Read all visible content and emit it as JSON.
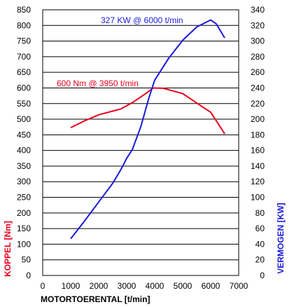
{
  "chart_data": {
    "type": "line",
    "xlabel": "MOTORTOERENTAL  [t/min]",
    "x_ticks": [
      "0",
      "1000",
      "2000",
      "3000",
      "4000",
      "5000",
      "6000",
      "7000"
    ],
    "xlim": [
      0,
      7000
    ],
    "ylabel_left": "KOPPEL  [Nm]",
    "ylabel_left_color": "#e8001c",
    "ylim_left": [
      0,
      850
    ],
    "yticks_left": [
      "0",
      "50",
      "100",
      "150",
      "200",
      "250",
      "300",
      "350",
      "400",
      "450",
      "500",
      "550",
      "600",
      "650",
      "700",
      "750",
      "800",
      "850"
    ],
    "ylabel_right": "VERMOGEN  [KW]",
    "ylabel_right_color": "#1a1adb",
    "ylim_right": [
      0,
      340
    ],
    "yticks_right": [
      "0",
      "20",
      "40",
      "60",
      "80",
      "100",
      "120",
      "140",
      "160",
      "180",
      "200",
      "220",
      "240",
      "260",
      "280",
      "300",
      "320",
      "340"
    ],
    "grid": "horizontal",
    "series": [
      {
        "axis": "left",
        "color": "#e8001c",
        "annotation": "600 Nm @ 3950 t/min",
        "x": [
          1000,
          1500,
          2000,
          2500,
          2800,
          3200,
          3600,
          3950,
          4300,
          5000,
          5500,
          6000,
          6250,
          6500
        ],
        "values": [
          473,
          495,
          514,
          526,
          533,
          553,
          577,
          600,
          599,
          582,
          552,
          522,
          488,
          453
        ]
      },
      {
        "axis": "right",
        "color": "#1a1adb",
        "annotation": "327 KW @ 6000 t/min",
        "x": [
          1000,
          1500,
          2000,
          2500,
          2800,
          3000,
          3200,
          3500,
          3800,
          4000,
          4500,
          5000,
          5500,
          6000,
          6200,
          6500
        ],
        "values": [
          47,
          70,
          94,
          118,
          136,
          150,
          161,
          190,
          228,
          250,
          278,
          301,
          318,
          327,
          322,
          304
        ]
      }
    ]
  }
}
